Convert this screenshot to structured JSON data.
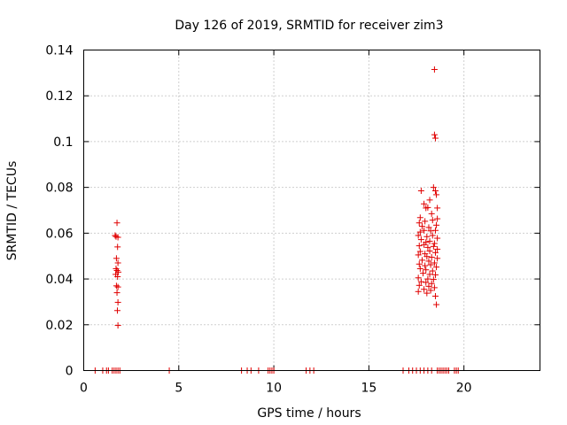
{
  "chart_data": {
    "type": "scatter",
    "title": "Day 126 of 2019, SRMTID for receiver zim3",
    "xlabel": "GPS time / hours",
    "ylabel": "SRMTID / TECUs",
    "xlim": [
      0,
      24
    ],
    "ylim": [
      0,
      0.14
    ],
    "xticks": [
      0,
      5,
      10,
      15,
      20
    ],
    "xtick_labels": [
      "0",
      "5",
      "10",
      "15",
      "20"
    ],
    "yticks": [
      0,
      0.02,
      0.04,
      0.06,
      0.08,
      0.1,
      0.12,
      0.14
    ],
    "ytick_labels": [
      "0",
      "0.02",
      "0.04",
      "0.06",
      "0.08",
      "0.1",
      "0.12",
      "0.14"
    ],
    "grid": true,
    "marker": "+",
    "color": "#e00000",
    "series": [
      {
        "name": "SRMTID",
        "points": [
          [
            0.6,
            0
          ],
          [
            1.0,
            0
          ],
          [
            1.2,
            0
          ],
          [
            1.3,
            0
          ],
          [
            1.5,
            0
          ],
          [
            1.6,
            0
          ],
          [
            1.7,
            0
          ],
          [
            1.8,
            0
          ],
          [
            1.9,
            0
          ],
          [
            4.5,
            0
          ],
          [
            8.3,
            0
          ],
          [
            8.6,
            0
          ],
          [
            8.8,
            0
          ],
          [
            9.2,
            0
          ],
          [
            9.7,
            0
          ],
          [
            9.8,
            0
          ],
          [
            9.9,
            0
          ],
          [
            10.0,
            0
          ],
          [
            11.7,
            0
          ],
          [
            11.9,
            0
          ],
          [
            12.1,
            0
          ],
          [
            16.8,
            0
          ],
          [
            17.1,
            0
          ],
          [
            17.3,
            0
          ],
          [
            17.5,
            0
          ],
          [
            17.7,
            0
          ],
          [
            17.9,
            0
          ],
          [
            18.1,
            0
          ],
          [
            18.3,
            0
          ],
          [
            18.6,
            0
          ],
          [
            18.7,
            0
          ],
          [
            18.8,
            0
          ],
          [
            18.9,
            0
          ],
          [
            19.0,
            0
          ],
          [
            19.1,
            0
          ],
          [
            19.2,
            0
          ],
          [
            19.5,
            0
          ],
          [
            19.6,
            0
          ],
          [
            19.7,
            0
          ],
          [
            1.75,
            0.0645
          ],
          [
            1.65,
            0.059
          ],
          [
            1.7,
            0.0585
          ],
          [
            1.8,
            0.0582
          ],
          [
            1.78,
            0.054
          ],
          [
            1.72,
            0.049
          ],
          [
            1.8,
            0.047
          ],
          [
            1.7,
            0.0445
          ],
          [
            1.75,
            0.0437
          ],
          [
            1.82,
            0.043
          ],
          [
            1.68,
            0.042
          ],
          [
            1.78,
            0.041
          ],
          [
            1.72,
            0.037
          ],
          [
            1.8,
            0.0365
          ],
          [
            1.75,
            0.034
          ],
          [
            1.8,
            0.0298
          ],
          [
            1.77,
            0.0262
          ],
          [
            1.8,
            0.0197
          ],
          [
            18.45,
            0.1315
          ],
          [
            18.45,
            0.103
          ],
          [
            18.5,
            0.1015
          ],
          [
            18.4,
            0.08
          ],
          [
            18.5,
            0.0785
          ],
          [
            17.75,
            0.0785
          ],
          [
            18.55,
            0.0768
          ],
          [
            18.2,
            0.0745
          ],
          [
            17.9,
            0.0728
          ],
          [
            18.0,
            0.071
          ],
          [
            18.1,
            0.0712
          ],
          [
            18.6,
            0.071
          ],
          [
            18.3,
            0.0685
          ],
          [
            17.7,
            0.0668
          ],
          [
            18.35,
            0.0657
          ],
          [
            18.6,
            0.0663
          ],
          [
            17.95,
            0.0652
          ],
          [
            17.65,
            0.0645
          ],
          [
            17.8,
            0.063
          ],
          [
            18.15,
            0.0625
          ],
          [
            18.55,
            0.0635
          ],
          [
            17.7,
            0.0605
          ],
          [
            17.9,
            0.0612
          ],
          [
            18.25,
            0.061
          ],
          [
            18.5,
            0.0612
          ],
          [
            17.6,
            0.059
          ],
          [
            18.05,
            0.0585
          ],
          [
            18.35,
            0.059
          ],
          [
            18.6,
            0.0578
          ],
          [
            17.75,
            0.0572
          ],
          [
            18.0,
            0.056
          ],
          [
            18.2,
            0.0565
          ],
          [
            18.45,
            0.0555
          ],
          [
            17.65,
            0.0545
          ],
          [
            17.9,
            0.055
          ],
          [
            18.1,
            0.0538
          ],
          [
            18.4,
            0.0542
          ],
          [
            18.6,
            0.053
          ],
          [
            17.7,
            0.052
          ],
          [
            17.95,
            0.051
          ],
          [
            18.2,
            0.0522
          ],
          [
            18.5,
            0.0515
          ],
          [
            17.6,
            0.0505
          ],
          [
            18.05,
            0.0498
          ],
          [
            18.3,
            0.0495
          ],
          [
            18.6,
            0.049
          ],
          [
            17.8,
            0.0482
          ],
          [
            18.15,
            0.0478
          ],
          [
            18.45,
            0.047
          ],
          [
            17.65,
            0.0465
          ],
          [
            17.95,
            0.0458
          ],
          [
            18.25,
            0.0462
          ],
          [
            18.55,
            0.0452
          ],
          [
            17.7,
            0.0445
          ],
          [
            18.0,
            0.044
          ],
          [
            18.35,
            0.0435
          ],
          [
            17.85,
            0.0425
          ],
          [
            18.2,
            0.042
          ],
          [
            18.5,
            0.0418
          ],
          [
            17.6,
            0.0405
          ],
          [
            18.1,
            0.04
          ],
          [
            18.4,
            0.0398
          ],
          [
            17.75,
            0.0388
          ],
          [
            18.0,
            0.0385
          ],
          [
            18.3,
            0.038
          ],
          [
            17.65,
            0.0372
          ],
          [
            18.15,
            0.0368
          ],
          [
            18.45,
            0.0362
          ],
          [
            17.9,
            0.0355
          ],
          [
            18.25,
            0.035
          ],
          [
            17.6,
            0.0345
          ],
          [
            18.05,
            0.0338
          ],
          [
            18.5,
            0.0325
          ],
          [
            18.55,
            0.0288
          ]
        ]
      }
    ]
  }
}
